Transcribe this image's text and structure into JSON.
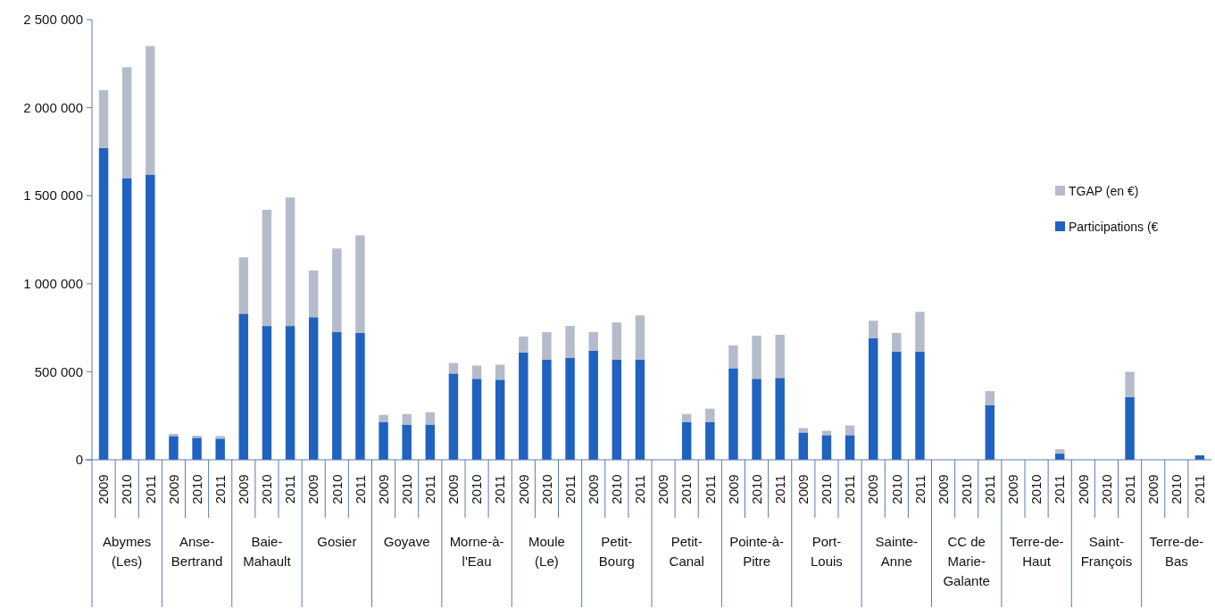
{
  "chart_data": {
    "type": "bar",
    "stacked": true,
    "categories": [
      "2009",
      "2010",
      "2011",
      "2009",
      "2010",
      "2011",
      "2009",
      "2010",
      "2011",
      "2009",
      "2010",
      "2011",
      "2009",
      "2010",
      "2011",
      "2009",
      "2010",
      "2011",
      "2009",
      "2010",
      "2011",
      "2009",
      "2010",
      "2011",
      "2009",
      "2010",
      "2011",
      "2009",
      "2010",
      "2011",
      "2009",
      "2010",
      "2011",
      "2009",
      "2010",
      "2011",
      "2009",
      "2010",
      "2011",
      "2009",
      "2010",
      "2011",
      "2009",
      "2010",
      "2011",
      "2009",
      "2010",
      "2011"
    ],
    "series": [
      {
        "name": "Participations (€",
        "color": "#1f62c0",
        "values": [
          1770000,
          1600000,
          1620000,
          135000,
          125000,
          120000,
          830000,
          760000,
          760000,
          810000,
          725000,
          720000,
          215000,
          200000,
          200000,
          490000,
          460000,
          455000,
          610000,
          570000,
          580000,
          620000,
          570000,
          570000,
          null,
          215000,
          215000,
          520000,
          460000,
          465000,
          155000,
          140000,
          140000,
          690000,
          615000,
          615000,
          null,
          null,
          310000,
          null,
          null,
          35000,
          null,
          null,
          355000,
          null,
          null,
          25000
        ]
      },
      {
        "name": "TGAP (en €)",
        "color": "#b4bccc",
        "values": [
          330000,
          630000,
          730000,
          12000,
          12000,
          15000,
          320000,
          660000,
          730000,
          265000,
          475000,
          555000,
          40000,
          60000,
          70000,
          60000,
          75000,
          85000,
          90000,
          155000,
          180000,
          105000,
          210000,
          250000,
          null,
          45000,
          75000,
          130000,
          245000,
          245000,
          25000,
          25000,
          55000,
          100000,
          105000,
          225000,
          null,
          null,
          80000,
          null,
          null,
          25000,
          null,
          null,
          145000,
          null,
          null,
          null
        ]
      }
    ],
    "ylim": [
      0,
      2500000
    ],
    "yticks": [
      0,
      {
        "value": 500000,
        "label": "500 000"
      },
      {
        "value": 1000000,
        "label": "1 000 000"
      },
      {
        "value": 1500000,
        "label": "1 500 000"
      },
      {
        "value": 2000000,
        "label": "2 000 000"
      },
      {
        "value": 2500000,
        "label": "2 500 000"
      }
    ],
    "grid": false,
    "legend": "right",
    "annotations": [
      "Abymes (Les)",
      "Anse-Bertrand",
      "Baie-Mahault",
      "Gosier",
      "Goyave",
      "Morne-à-l'Eau",
      "Moule (Le)",
      "Petit-Bourg",
      "Petit-Canal",
      "Pointe-à-Pitre",
      "Port-Louis",
      "Sainte-Anne",
      "CC de Marie-Galante",
      "Terre-de-Haut",
      "Saint-François",
      "Terre-de-Bas"
    ]
  }
}
